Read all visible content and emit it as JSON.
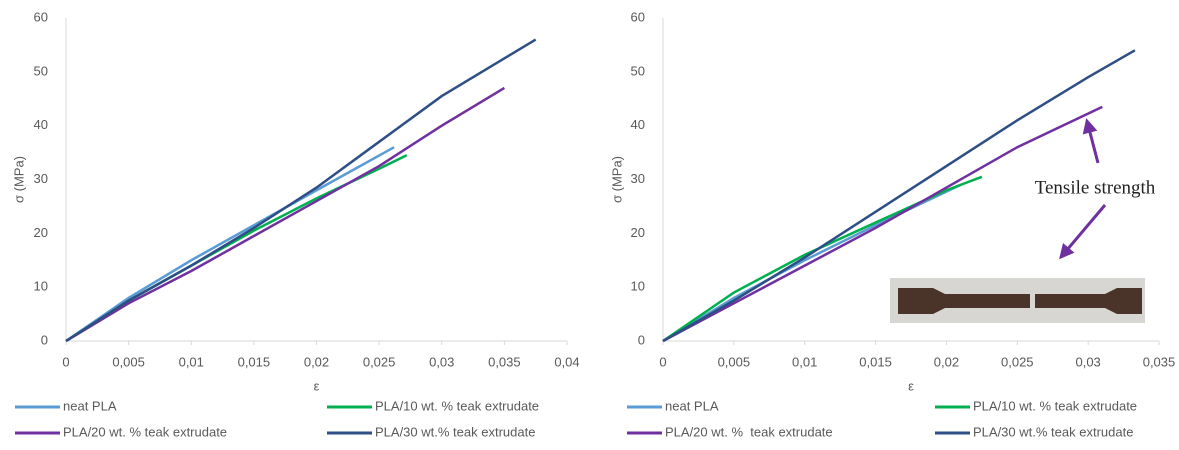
{
  "chart_data": [
    {
      "type": "line",
      "ylabel": "σ (MPa)",
      "xlabel": "ε",
      "xlim": [
        0,
        0.04
      ],
      "xticks": [
        0,
        {
          "value": 0.005,
          "label": "0,005"
        },
        {
          "value": 0.01,
          "label": "0,01"
        },
        {
          "value": 0.015,
          "label": "0,015"
        },
        {
          "value": 0.02,
          "label": "0,02"
        },
        {
          "value": 0.025,
          "label": "0,025"
        },
        {
          "value": 0.03,
          "label": "0,03"
        },
        {
          "value": 0.035,
          "label": "0,035"
        },
        {
          "value": 0.04,
          "label": "0,04"
        }
      ],
      "ylim": [
        0,
        60
      ],
      "yticks": [
        0,
        10,
        20,
        30,
        40,
        50,
        60
      ],
      "grid": false,
      "series": [
        {
          "name": "neat PLA",
          "color": "#5b9bd5",
          "x": [
            0,
            0.005,
            0.01,
            0.015,
            0.02,
            0.0262
          ],
          "values": [
            0,
            8,
            15,
            21.5,
            28,
            36
          ]
        },
        {
          "name": "PLA/10 wt. % teak extrudate",
          "color": "#00b050",
          "x": [
            0,
            0.005,
            0.01,
            0.015,
            0.02,
            0.025,
            0.0272
          ],
          "values": [
            0,
            7.5,
            14,
            20.5,
            26.5,
            32,
            34.5
          ]
        },
        {
          "name": "PLA/20 wt. % teak extrudate",
          "color": "#7030a0",
          "x": [
            0,
            0.005,
            0.01,
            0.015,
            0.02,
            0.025,
            0.03,
            0.035
          ],
          "values": [
            0,
            7,
            13,
            19.5,
            26,
            32.5,
            40,
            47
          ]
        },
        {
          "name": "PLA/30 wt.% teak extrudate",
          "color": "#2e4f86",
          "x": [
            0,
            0.005,
            0.01,
            0.015,
            0.02,
            0.025,
            0.03,
            0.0375
          ],
          "values": [
            0,
            7.5,
            14,
            21,
            28.5,
            37,
            45.5,
            56
          ]
        }
      ]
    },
    {
      "type": "line",
      "ylabel": "σ (MPa)",
      "xlabel": "ε",
      "xlim": [
        0,
        0.035
      ],
      "xticks": [
        0,
        {
          "value": 0.005,
          "label": "0,005"
        },
        {
          "value": 0.01,
          "label": "0,01"
        },
        {
          "value": 0.015,
          "label": "0,015"
        },
        {
          "value": 0.02,
          "label": "0,02"
        },
        {
          "value": 0.025,
          "label": "0,025"
        },
        {
          "value": 0.03,
          "label": "0,03"
        },
        {
          "value": 0.035,
          "label": "0,035"
        }
      ],
      "ylim": [
        0,
        60
      ],
      "yticks": [
        0,
        10,
        20,
        30,
        40,
        50,
        60
      ],
      "grid": false,
      "annotation": "Tensile strength",
      "series": [
        {
          "name": "neat PLA",
          "color": "#5b9bd5",
          "x": [
            0,
            0.005,
            0.01,
            0.015,
            0.021
          ],
          "values": [
            0,
            8,
            15,
            21.5,
            29
          ]
        },
        {
          "name": "PLA/10 wt. % teak extrudate",
          "color": "#00b050",
          "x": [
            0,
            0.005,
            0.01,
            0.015,
            0.02,
            0.0225
          ],
          "values": [
            0,
            9,
            16,
            22,
            28,
            30.5
          ]
        },
        {
          "name": "PLA/20 wt. %  teak extrudate",
          "color": "#7030a0",
          "x": [
            0,
            0.005,
            0.01,
            0.015,
            0.02,
            0.025,
            0.031
          ],
          "values": [
            0,
            7,
            14,
            21,
            28.5,
            36,
            43.5
          ]
        },
        {
          "name": "PLA/30 wt.% teak extrudate",
          "color": "#2e4f86",
          "x": [
            0,
            0.005,
            0.01,
            0.015,
            0.02,
            0.025,
            0.03,
            0.0333
          ],
          "values": [
            0,
            7.5,
            15.5,
            24,
            32.5,
            41,
            49,
            54
          ]
        }
      ]
    }
  ]
}
